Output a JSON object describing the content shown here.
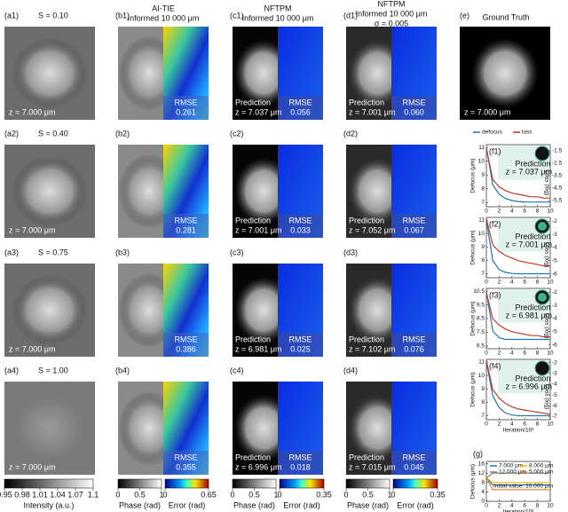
{
  "headers": [
    {
      "lines": [
        "AI-TIE",
        "Informed 10 000 μm"
      ]
    },
    {
      "lines": [
        "NFTPM",
        "Informed 10 000 μm"
      ]
    },
    {
      "lines": [
        "NFTPM",
        "Informed 10 000 μm",
        "σ = 0.005"
      ]
    },
    {
      "lines": [
        "Ground Truth"
      ]
    }
  ],
  "rows": [
    {
      "a": {
        "tag": "(a1)",
        "s": "S = 0.10",
        "z": "z = 7.000 μm"
      },
      "b": {
        "tag": "(b1)",
        "rmse_label": "RMSE",
        "rmse": "0.261"
      },
      "c": {
        "tag": "(c1)",
        "pred": "Prediction",
        "z": "z = 7.037 μm",
        "rmse_label": "RMSE",
        "rmse": "0.056"
      },
      "d": {
        "tag": "(d1)",
        "pred": "Prediction",
        "z": "z = 7.001 μm",
        "rmse_label": "RMSE",
        "rmse": "0.060"
      }
    },
    {
      "a": {
        "tag": "(a2)",
        "s": "S = 0.40",
        "z": "z = 7.000 μm"
      },
      "b": {
        "tag": "(b2)",
        "rmse_label": "RMSE",
        "rmse": "0.281"
      },
      "c": {
        "tag": "(c2)",
        "pred": "Prediction",
        "z": "z = 7.001 μm",
        "rmse_label": "RMSE",
        "rmse": "0.033"
      },
      "d": {
        "tag": "(d2)",
        "pred": "Prediction",
        "z": "z = 7.052 μm",
        "rmse_label": "RMSE",
        "rmse": "0.067"
      }
    },
    {
      "a": {
        "tag": "(a3)",
        "s": "S = 0.75",
        "z": "z = 7.000 μm"
      },
      "b": {
        "tag": "(b3)",
        "rmse_label": "RMSE",
        "rmse": "0.386"
      },
      "c": {
        "tag": "(c3)",
        "pred": "Prediction",
        "z": "z = 6.981 μm",
        "rmse_label": "RMSE",
        "rmse": "0.025"
      },
      "d": {
        "tag": "(d3)",
        "pred": "Prediction",
        "z": "z = 7.102 μm",
        "rmse_label": "RMSE",
        "rmse": "0.076"
      }
    },
    {
      "a": {
        "tag": "(a4)",
        "s": "S = 1.00",
        "z": "z = 7.000 μm"
      },
      "b": {
        "tag": "(b4)",
        "rmse_label": "RMSE",
        "rmse": "0.355"
      },
      "c": {
        "tag": "(c4)",
        "pred": "Prediction",
        "z": "z = 6.996 μm",
        "rmse_label": "RMSE",
        "rmse": "0.018"
      },
      "d": {
        "tag": "(d4)",
        "pred": "Prediction",
        "z": "z = 7.015 μm",
        "rmse_label": "RMSE",
        "rmse": "0.045"
      }
    }
  ],
  "e": {
    "tag": "(e)",
    "z": "z = 7.000 μm"
  },
  "colorbars": [
    {
      "ticks": [
        0.95,
        0.98,
        1.01,
        1.04,
        1.07,
        1.1
      ],
      "label": "Intensity (a.u.)"
    },
    {
      "ticks": [
        0,
        0.5,
        1
      ],
      "label": "Phase (rad)"
    },
    {
      "ticks": [
        0,
        0.65
      ],
      "label": "Error (rad)"
    },
    {
      "ticks": [
        0,
        0.5,
        1
      ],
      "label": "Phase (rad)"
    },
    {
      "ticks": [
        0,
        0.35
      ],
      "label": "Error (rad)"
    },
    {
      "ticks": [
        0,
        0.5,
        1
      ],
      "label": "Phase (rad)"
    },
    {
      "ticks": [
        0,
        0.35
      ],
      "label": "Error (rad)"
    }
  ],
  "charts": [
    {
      "type": "line",
      "tag": "(f1)",
      "pred": "Prediction",
      "z": "z = 7.037 μm",
      "ylabel": "Defocus (μm)",
      "y2label": "Loss (log)",
      "x": [
        0,
        1,
        2,
        3,
        4,
        5,
        6,
        7,
        8,
        9,
        10
      ],
      "xlim": [
        0,
        10
      ],
      "xticks": [
        0,
        2,
        4,
        6,
        8,
        10
      ],
      "ylim": [
        6.7,
        11.2
      ],
      "yticks": [
        7,
        8,
        9,
        10,
        11
      ],
      "y2lim": [
        -6,
        -1
      ],
      "y2ticks": [
        -1.5,
        -2.5,
        -3.5,
        -4.5,
        -5.5
      ],
      "series": [
        {
          "name": "defocus",
          "color": "#1f77b4",
          "values": [
            11,
            8.3,
            7.6,
            7.3,
            7.15,
            7.08,
            7.05,
            7.04,
            7.04,
            7.04,
            7.04
          ]
        },
        {
          "name": "loss",
          "color": "#c0392b",
          "axis": "y2",
          "values": [
            -1.3,
            -3.8,
            -4.4,
            -4.7,
            -4.9,
            -5.0,
            -5.1,
            -5.2,
            -5.2,
            -5.3,
            -5.3
          ]
        }
      ]
    },
    {
      "type": "line",
      "tag": "(f2)",
      "pred": "Prediction",
      "z": "z = 7.001 μm",
      "ylabel": "Defocus (μm)",
      "y2label": "Loss (log)",
      "x": [
        0,
        1,
        2,
        3,
        4,
        5,
        6,
        7,
        8,
        9,
        10
      ],
      "xlim": [
        0,
        10
      ],
      "xticks": [
        0,
        2,
        4,
        6,
        8,
        10
      ],
      "ylim": [
        6.7,
        11.2
      ],
      "yticks": [
        7,
        8,
        9,
        10,
        11
      ],
      "y2lim": [
        -6.3,
        -1.7
      ],
      "y2ticks": [
        -2,
        -3,
        -4,
        -5,
        -6
      ],
      "series": [
        {
          "color": "#1f77b4",
          "values": [
            11,
            8.0,
            7.3,
            7.1,
            7.02,
            7.0,
            7.0,
            7.0,
            7.0,
            7.0,
            7.0
          ]
        },
        {
          "color": "#c0392b",
          "axis": "y2",
          "values": [
            -1.8,
            -3.8,
            -4.3,
            -4.6,
            -4.8,
            -5.0,
            -5.1,
            -5.2,
            -5.3,
            -5.4,
            -5.4
          ]
        }
      ]
    },
    {
      "type": "line",
      "tag": "(f3)",
      "pred": "Prediction",
      "z": "z = 6.981 μm",
      "ylabel": "Defocus (μm)",
      "y2label": "Loss (log)",
      "x": [
        0,
        1,
        2,
        3,
        4,
        5,
        6,
        7,
        8,
        9,
        10
      ],
      "xlim": [
        0,
        10
      ],
      "xticks": [
        0,
        2,
        4,
        6,
        8,
        10
      ],
      "ylim": [
        6.3,
        10.7
      ],
      "yticks": [
        6.5,
        7.5,
        8.5,
        9.5,
        10.5
      ],
      "y2lim": [
        -6.3,
        -1.7
      ],
      "y2ticks": [
        -2,
        -3,
        -4,
        -5,
        -6
      ],
      "series": [
        {
          "color": "#1f77b4",
          "values": [
            10.5,
            7.6,
            7.1,
            6.98,
            6.98,
            6.98,
            6.98,
            6.98,
            6.98,
            6.98,
            6.98
          ]
        },
        {
          "color": "#c0392b",
          "axis": "y2",
          "values": [
            -2,
            -4,
            -4.5,
            -4.8,
            -5,
            -5.1,
            -5.2,
            -5.3,
            -5.3,
            -5.4,
            -5.4
          ]
        }
      ]
    },
    {
      "type": "line",
      "tag": "(f4)",
      "pred": "Prediction",
      "z": "z = 6.996 μm",
      "ylabel": "Defocus (μm)",
      "y2label": "Loss (log)",
      "xlabel": "Iteration/10³",
      "x": [
        0,
        1,
        2,
        3,
        4,
        5,
        6,
        7,
        8,
        9,
        10
      ],
      "xlim": [
        0,
        10
      ],
      "xticks": [
        0,
        2,
        4,
        6,
        8,
        10
      ],
      "ylim": [
        6.7,
        11.2
      ],
      "yticks": [
        7,
        8,
        9,
        10,
        11
      ],
      "y2lim": [
        -7.3,
        -1.7
      ],
      "y2ticks": [
        -2,
        -3,
        -4,
        -5,
        -6,
        -7
      ],
      "series": [
        {
          "color": "#1f77b4",
          "values": [
            11,
            8.5,
            7.6,
            7.2,
            7.05,
            7.0,
            7.0,
            7.0,
            7.0,
            7.0,
            7.0
          ]
        },
        {
          "color": "#c0392b",
          "axis": "y2",
          "values": [
            -1.8,
            -4.5,
            -5.3,
            -5.8,
            -6.1,
            -6.3,
            -6.4,
            -6.5,
            -6.6,
            -6.7,
            -6.8
          ]
        }
      ]
    },
    {
      "type": "line",
      "tag": "(g)",
      "note": "Initial value: 10.000 μm",
      "ylabel": "Defocus (μm)",
      "xlabel": "Iteration/10³",
      "x": [
        0,
        1,
        2,
        3,
        4,
        5,
        6,
        7,
        8,
        9,
        10
      ],
      "xlim": [
        0,
        10
      ],
      "xticks": [
        0,
        2,
        4,
        6,
        8,
        10
      ],
      "ylim": [
        0,
        17
      ],
      "yticks": [
        0,
        4,
        8,
        12,
        16
      ],
      "series": [
        {
          "name": "7.000 μm",
          "color": "#1f77b4",
          "values": [
            10,
            7,
            7,
            7,
            7,
            7,
            7,
            7,
            7,
            7,
            7
          ]
        },
        {
          "name": "8.000 μm",
          "color": "#e6b800",
          "values": [
            10,
            8,
            8,
            8,
            8,
            8,
            8,
            8,
            8,
            8,
            8
          ]
        },
        {
          "name": "12.000 μm",
          "color": "#7f7f7f",
          "values": [
            10,
            12,
            12,
            12,
            12,
            12,
            12,
            12,
            12,
            12,
            12
          ]
        },
        {
          "name": "5.000 μm",
          "color": "#e67e22",
          "values": [
            10,
            5,
            5,
            5,
            5,
            5,
            5,
            5,
            5,
            5,
            5
          ]
        }
      ]
    }
  ]
}
